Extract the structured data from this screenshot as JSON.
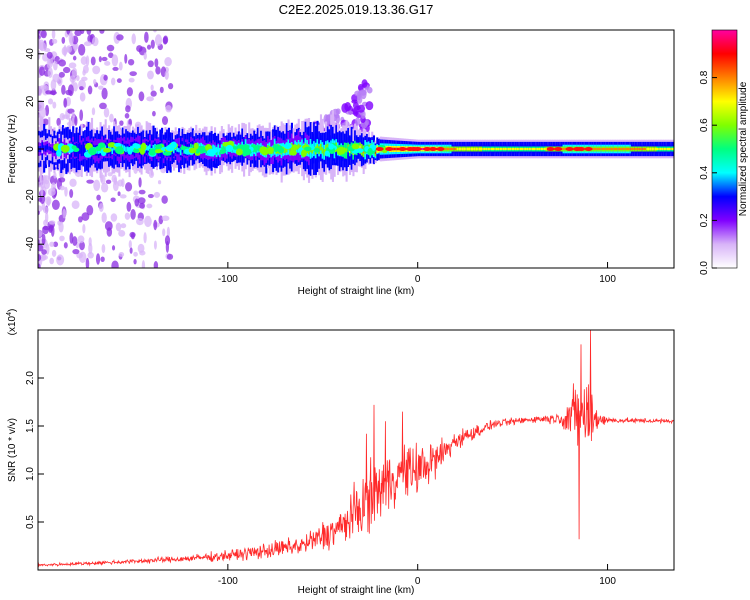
{
  "title": "C2E2.2025.019.13.36.G17",
  "chart_data": [
    {
      "type": "heatmap",
      "title": "C2E2.2025.019.13.36.G17",
      "xlabel": "Height of straight line (km)",
      "ylabel": "Frequency (Hz)",
      "xlim": [
        -200,
        135
      ],
      "ylim": [
        -50,
        50
      ],
      "x_ticks": [
        -100,
        0,
        100
      ],
      "x_tick_labels": [
        "-100",
        "0",
        "100"
      ],
      "y_ticks": [
        -40,
        -20,
        0,
        20,
        40
      ],
      "y_tick_labels": [
        "-40",
        "-20",
        "0",
        "20",
        "40"
      ],
      "colorbar": {
        "label": "Normalized spectral amplitude",
        "range": [
          0,
          1
        ],
        "ticks": [
          0.0,
          0.2,
          0.4,
          0.6,
          0.8
        ],
        "tick_labels": [
          "0.0",
          "0.2",
          "0.4",
          "0.6",
          "0.8"
        ],
        "colors": [
          "#ffffff",
          "#d8b4f8",
          "#8000ff",
          "#0000ff",
          "#00ffff",
          "#00ff80",
          "#80ff00",
          "#ffff00",
          "#ff8000",
          "#ff0000",
          "#ff00a0"
        ]
      },
      "band_profile": [
        {
          "x": -200,
          "spread": 8,
          "amp": 0.3
        },
        {
          "x": -150,
          "spread": 7,
          "amp": 0.4
        },
        {
          "x": -100,
          "spread": 6,
          "amp": 0.5
        },
        {
          "x": -80,
          "spread": 7,
          "amp": 0.55
        },
        {
          "x": -60,
          "spread": 9,
          "amp": 0.55
        },
        {
          "x": -40,
          "spread": 8,
          "amp": 0.6
        },
        {
          "x": -20,
          "spread": 4,
          "amp": 0.9
        },
        {
          "x": 0,
          "spread": 3,
          "amp": 1.0
        },
        {
          "x": 20,
          "spread": 3,
          "amp": 0.75
        },
        {
          "x": 60,
          "spread": 3,
          "amp": 0.7
        },
        {
          "x": 90,
          "spread": 3,
          "amp": 0.85
        },
        {
          "x": 135,
          "spread": 3,
          "amp": 0.7
        }
      ],
      "plume": [
        {
          "x": -60,
          "freq": 8
        },
        {
          "x": -45,
          "freq": 15
        },
        {
          "x": -35,
          "freq": 20
        },
        {
          "x": -25,
          "freq": 32
        }
      ],
      "scatter_region": {
        "x": [
          -200,
          -130
        ],
        "freq": [
          -50,
          50
        ]
      }
    },
    {
      "type": "line",
      "xlabel": "Height of straight line (km)",
      "ylabel": "SNR (10 * v/v)",
      "y_scale_label": "(x10",
      "y_scale_exponent": "4",
      "xlim": [
        -200,
        135
      ],
      "ylim": [
        0,
        2.5
      ],
      "x_ticks": [
        -100,
        0,
        100
      ],
      "x_tick_labels": [
        "-100",
        "0",
        "100"
      ],
      "y_ticks": [
        0.5,
        1.0,
        1.5,
        2.0
      ],
      "y_tick_labels": [
        "0.5",
        "1.0",
        "1.5",
        "2.0"
      ],
      "color": "#ff2a2a",
      "envelope": [
        {
          "x": -200,
          "mean": 0.05,
          "noise": 0.02
        },
        {
          "x": -160,
          "mean": 0.08,
          "noise": 0.03
        },
        {
          "x": -120,
          "mean": 0.12,
          "noise": 0.05
        },
        {
          "x": -100,
          "mean": 0.15,
          "noise": 0.08
        },
        {
          "x": -80,
          "mean": 0.2,
          "noise": 0.12
        },
        {
          "x": -60,
          "mean": 0.26,
          "noise": 0.15
        },
        {
          "x": -40,
          "mean": 0.45,
          "noise": 0.3
        },
        {
          "x": -30,
          "mean": 0.65,
          "noise": 0.45
        },
        {
          "x": -20,
          "mean": 0.85,
          "noise": 0.5
        },
        {
          "x": -10,
          "mean": 1.0,
          "noise": 0.4
        },
        {
          "x": 0,
          "mean": 1.05,
          "noise": 0.4
        },
        {
          "x": 10,
          "mean": 1.15,
          "noise": 0.3
        },
        {
          "x": 20,
          "mean": 1.35,
          "noise": 0.15
        },
        {
          "x": 40,
          "mean": 1.52,
          "noise": 0.06
        },
        {
          "x": 60,
          "mean": 1.57,
          "noise": 0.05
        },
        {
          "x": 75,
          "mean": 1.58,
          "noise": 0.08
        },
        {
          "x": 80,
          "mean": 1.6,
          "noise": 0.35
        },
        {
          "x": 85,
          "mean": 1.6,
          "noise": 0.6
        },
        {
          "x": 90,
          "mean": 1.6,
          "noise": 0.55
        },
        {
          "x": 95,
          "mean": 1.58,
          "noise": 0.2
        },
        {
          "x": 100,
          "mean": 1.56,
          "noise": 0.04
        },
        {
          "x": 135,
          "mean": 1.55,
          "noise": 0.03
        }
      ],
      "spikes": [
        {
          "x": -27,
          "y": 1.42
        },
        {
          "x": -23,
          "y": 1.72
        },
        {
          "x": -17,
          "y": 1.55
        },
        {
          "x": -8,
          "y": 1.65
        },
        {
          "x": 85,
          "y": 0.32
        },
        {
          "x": 86,
          "y": 2.35
        },
        {
          "x": 91,
          "y": 2.5
        }
      ]
    }
  ]
}
